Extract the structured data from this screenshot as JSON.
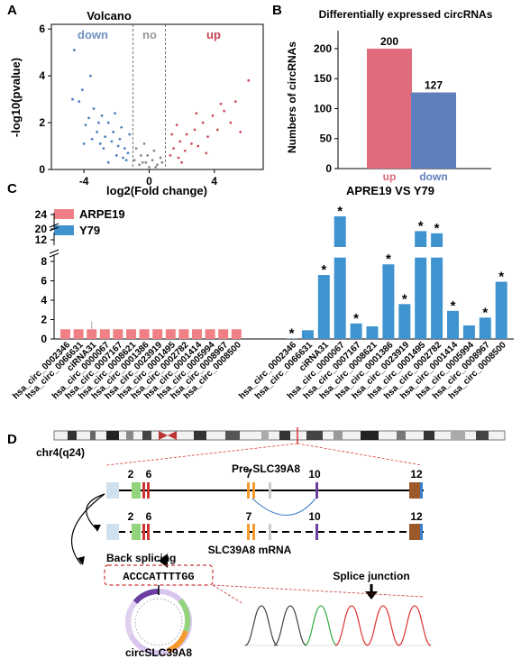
{
  "panels": {
    "A": {
      "letter": "A",
      "chart_data": {
        "type": "scatter",
        "title": "Volcano",
        "xlabel": "log2(Fold change)",
        "ylabel": "-log10(pvalue)",
        "xlim": [
          -6,
          7
        ],
        "ylim": [
          0,
          6.2
        ],
        "x_ticks": [
          "-4",
          "0",
          "4"
        ],
        "y_ticks": [
          "0",
          "2",
          "4",
          "6"
        ],
        "threshold_lines_x": [
          -1,
          1
        ],
        "region_labels": {
          "down": "down",
          "no": "no",
          "up": "up"
        },
        "colors": {
          "down": "#4e7fbf",
          "no": "#8a8a8a",
          "up": "#d0505e"
        },
        "points": {
          "down": [
            [
              -4.6,
              5.1
            ],
            [
              -3.6,
              4.0
            ],
            [
              -4.1,
              3.4
            ],
            [
              -4.7,
              3.0
            ],
            [
              -3.4,
              2.6
            ],
            [
              -2.9,
              2.3
            ],
            [
              -2.5,
              2.0
            ],
            [
              -4.3,
              2.9
            ],
            [
              -3.9,
              1.9
            ],
            [
              -3.2,
              1.6
            ],
            [
              -2.7,
              1.4
            ],
            [
              -2.3,
              1.2
            ],
            [
              -1.9,
              1.0
            ],
            [
              -1.5,
              0.9
            ],
            [
              -1.3,
              0.7
            ],
            [
              -3.5,
              1.3
            ],
            [
              -4.0,
              1.1
            ],
            [
              -2.0,
              0.6
            ],
            [
              -1.6,
              0.5
            ],
            [
              -2.8,
              0.9
            ],
            [
              -3.1,
              2.0
            ],
            [
              -2.2,
              1.6
            ],
            [
              -1.8,
              1.3
            ],
            [
              -1.4,
              0.4
            ],
            [
              -2.5,
              0.3
            ],
            [
              -3.7,
              2.2
            ],
            [
              -1.2,
              1.5
            ],
            [
              -1.7,
              1.8
            ],
            [
              -2.1,
              2.4
            ],
            [
              -3.0,
              1.1
            ]
          ],
          "no": [
            [
              -0.8,
              0.9
            ],
            [
              -0.5,
              0.6
            ],
            [
              -0.2,
              0.3
            ],
            [
              0.2,
              0.4
            ],
            [
              0.5,
              0.2
            ],
            [
              0.7,
              0.5
            ],
            [
              -0.6,
              0.2
            ],
            [
              0.0,
              0.1
            ],
            [
              -0.3,
              1.1
            ],
            [
              0.3,
              0.8
            ],
            [
              -0.9,
              0.4
            ],
            [
              0.8,
              0.3
            ],
            [
              -0.1,
              0.6
            ],
            [
              0.4,
              0.1
            ],
            [
              -0.4,
              0.3
            ]
          ],
          "up": [
            [
              6.1,
              3.8
            ],
            [
              5.3,
              2.9
            ],
            [
              4.6,
              2.5
            ],
            [
              3.9,
              2.3
            ],
            [
              3.3,
              2.0
            ],
            [
              2.8,
              1.7
            ],
            [
              2.3,
              1.5
            ],
            [
              1.9,
              1.2
            ],
            [
              1.5,
              0.9
            ],
            [
              1.3,
              0.6
            ],
            [
              2.6,
              1.1
            ],
            [
              3.6,
              1.4
            ],
            [
              4.2,
              1.7
            ],
            [
              5.0,
              2.0
            ],
            [
              1.8,
              0.5
            ],
            [
              2.2,
              0.8
            ],
            [
              3.0,
              1.0
            ],
            [
              1.4,
              1.5
            ],
            [
              2.9,
              2.4
            ],
            [
              4.4,
              2.8
            ],
            [
              3.5,
              0.7
            ],
            [
              2.0,
              0.3
            ],
            [
              5.6,
              1.6
            ],
            [
              1.7,
              1.9
            ]
          ]
        }
      }
    },
    "B": {
      "letter": "B",
      "chart_data": {
        "type": "bar",
        "title": "Differentially expressed circRNAs",
        "ylabel": "Numbers of circRNAs",
        "ylim": [
          0,
          230
        ],
        "y_ticks": [
          "0",
          "50",
          "100",
          "150",
          "200"
        ],
        "categories": [
          "up",
          "down"
        ],
        "values": [
          200,
          127
        ],
        "value_labels": [
          "200",
          "127"
        ],
        "colors": [
          "#e06b7c",
          "#5f7fbd"
        ],
        "xlabel": "APRE19  VS  Y79"
      }
    },
    "C": {
      "letter": "C",
      "chart_data": {
        "type": "bar",
        "legend": [
          {
            "name": "ARPE19",
            "color": "#f07f86"
          },
          {
            "name": "Y79",
            "color": "#3f93cf"
          }
        ],
        "y_ticks_lower": [
          "0",
          "2",
          "4",
          "6",
          "8"
        ],
        "y_ticks_upper": [
          "12",
          "20",
          "24"
        ],
        "categories": [
          "hsa_circ_0002346",
          "hsa_circ_0066631",
          "ciRNA31",
          "hsa_circ_0000067",
          "hsa_circ_0007167",
          "hsa_circ_0008621",
          "hsa_circ_0001386",
          "hsa_circ_0023919",
          "hsa_circ_0001495",
          "hsa_circ_0002782",
          "hsa_circ_0001414",
          "hsa_circ_0005994",
          "hsa_circ_0008967",
          "hsa_circ_0008500"
        ],
        "series": [
          {
            "name": "ARPE19",
            "values": [
              1,
              1,
              1,
              1,
              1,
              1,
              1,
              1,
              1,
              1,
              1,
              1,
              1,
              1
            ]
          },
          {
            "name": "Y79",
            "values": [
              0.03,
              0.9,
              6.6,
              23.5,
              1.6,
              1.3,
              7.7,
              3.6,
              13.2,
              12.9,
              2.9,
              1.4,
              2.2,
              5.9
            ]
          }
        ],
        "asterisk": [
          true,
          false,
          true,
          true,
          true,
          false,
          true,
          true,
          true,
          true,
          true,
          false,
          true,
          true
        ],
        "asterisk_label": "*"
      }
    },
    "D": {
      "letter": "D",
      "chromosome_label": "chr4(q24)",
      "pre_mrna_label": "Pre-SLC39A8",
      "mrna_label": "SLC39A8 mRNA",
      "exon_numbers": [
        "2",
        "6",
        "7",
        "10",
        "12"
      ],
      "back_splicing_label": "Back splicing",
      "junction_sequence": "ACCCATTTTGG",
      "circ_label": "circSLC39A8",
      "splice_junction_label": "Splice junction",
      "trace_colors": [
        "#444444",
        "#33aa44",
        "#dd3333",
        "#3355cc"
      ]
    }
  }
}
